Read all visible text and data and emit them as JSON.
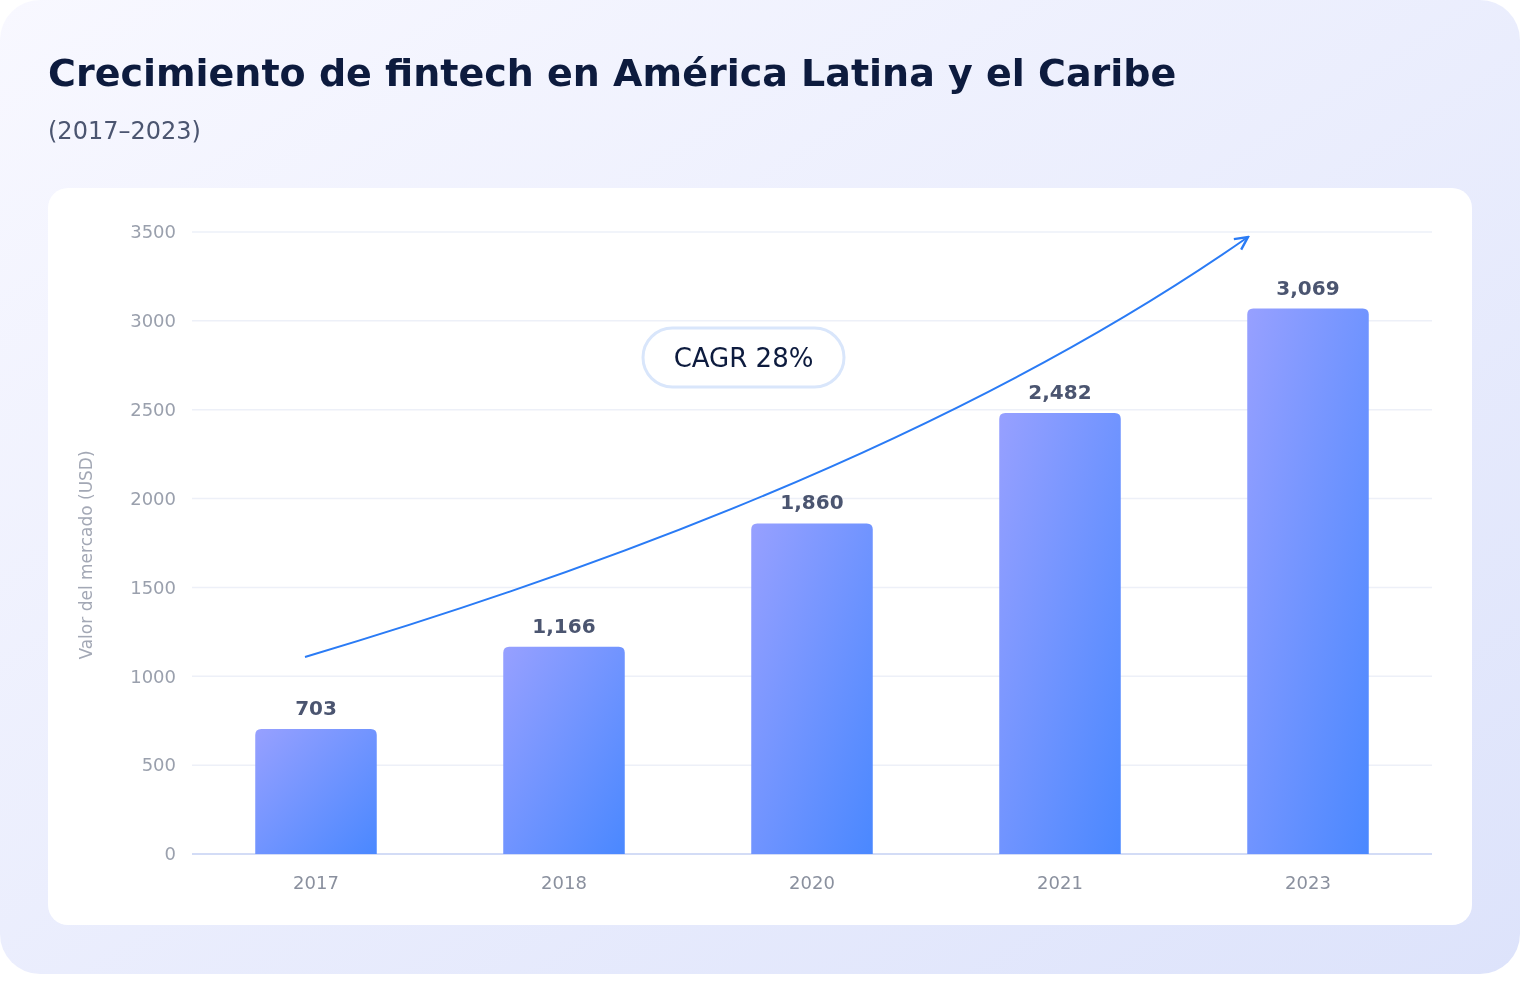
{
  "chart_data": {
    "type": "bar",
    "title": "Crecimiento de fintech en América Latina y el Caribe",
    "subtitle": "(2017–2023)",
    "ylabel": "Valor del mercado (USD)",
    "categories": [
      "2017",
      "2018",
      "2020",
      "2021",
      "2023"
    ],
    "values": [
      703,
      1166,
      1860,
      2482,
      3069
    ],
    "value_labels": [
      "703",
      "1,166",
      "1,860",
      "2,482",
      "3,069"
    ],
    "color": "#4a88ff",
    "ylim": [
      0,
      3500
    ],
    "yticks": [
      0,
      500,
      1000,
      1500,
      2000,
      2500,
      3000,
      3500
    ],
    "grid": "y",
    "annotations": [
      "CAGR 28%"
    ]
  }
}
